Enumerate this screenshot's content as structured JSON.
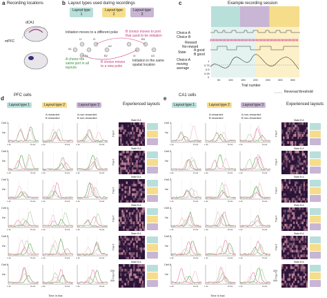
{
  "panels": {
    "a": {
      "letter": "a",
      "title": "Recording locations",
      "labels": [
        "dCA1",
        "mPFC"
      ]
    },
    "b": {
      "letter": "b",
      "title": "Layout types used during recordings",
      "layouts": [
        "Layout type 1",
        "Layout type 2",
        "Layout type 3"
      ],
      "ports": [
        "A1",
        "I1",
        "B1",
        "I2",
        "B2",
        "A2",
        "B3",
        "I3",
        "A3"
      ],
      "annotations": {
        "init_moves": "Initiation moves to a different poke",
        "b_moves_init": "B choice moves to port that used to be initiation",
        "a_same": "A choice the same port in all layouts",
        "b_new": "B choice moves to a new poke",
        "init_same": "Initiation in the same spatial location"
      }
    },
    "c": {
      "letter": "c",
      "title": "Example recording session",
      "rows": [
        "Choice A",
        "Choice B",
        "Reward",
        "No-reward",
        "State",
        "A good",
        "B good",
        "Choice A moving average"
      ],
      "yticks": [
        "1",
        "0.75",
        "0.5",
        "0.25",
        "0"
      ],
      "xticks": [
        "50",
        "100",
        "150",
        "200",
        "250",
        "300",
        "350"
      ],
      "xlabel": "Trial number",
      "legend": "Reversal threshold"
    },
    "d": {
      "letter": "d",
      "title": "PFC cells",
      "layouts": [
        "Layout type 1",
        "Layout type 2",
        "Layout type 3"
      ],
      "legend": [
        "A rewarded",
        "B rewarded",
        "A non-rewarded",
        "B non-rewarded"
      ],
      "cells": [
        "Cell 1",
        "Cell 2",
        "Cell 3",
        "Cell 4",
        "Cell 5",
        "Cell 6"
      ],
      "ylabel": "Hz",
      "xlabel": "Time in trial",
      "xticks": [
        "I–1s",
        "O+1s"
      ],
      "exp_title": "Experienced layouts",
      "state_label": "State B A",
      "trial_ticks": [
        "100",
        "200",
        "300",
        "400"
      ],
      "trial_label": "Trial #"
    },
    "e": {
      "letter": "e",
      "title": "CA1 cells",
      "layouts": [
        "Layout type 1",
        "Layout type 2",
        "Layout type 3"
      ],
      "legend": [
        "A rewarded",
        "B rewarded",
        "A non-rewarded",
        "B non-rewarded"
      ],
      "cells": [
        "Cell 1",
        "Cell 2",
        "Cell 3",
        "Cell 4",
        "Cell 5",
        "Cell 6"
      ],
      "ylabel": "Hz",
      "xlabel": "Time in trial",
      "xticks": [
        "I–1s",
        "O+1s"
      ],
      "exp_title": "Experienced layouts",
      "state_label": "State B A",
      "trial_ticks": [
        "100",
        "200",
        "300",
        "400"
      ],
      "trial_label": "Trial #"
    }
  },
  "colors": {
    "layout1": "#b9dfdb",
    "layout2": "#f6dd8c",
    "layout3": "#c8b6d4",
    "a_rewarded": "#5a9a4a",
    "b_rewarded": "#e07aa0",
    "a_nonrewarded": "#a6c99a",
    "b_nonrewarded": "#f2b6ca",
    "heatmap_dark": "#2a1438",
    "heatmap_light": "#e6a0b0"
  }
}
